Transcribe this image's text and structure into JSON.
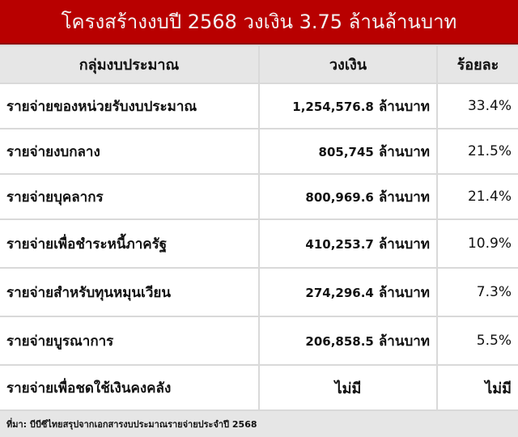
{
  "title": "โครงสร้างงบปี 2568 วงเงิน 3.75 ล้านล้านบาท",
  "colors": {
    "title_bg": "#b80000",
    "header_bg": "#e6e6e6"
  },
  "headers": [
    "กลุ่มงบประมาณ",
    "วงเงิน",
    "ร้อยละ"
  ],
  "unit": "ล้านบาท",
  "rows": [
    {
      "group": "รายจ่ายของหน่วยรับงบประมาณ",
      "amount": "1,254,576.8",
      "percent": "33.4%"
    },
    {
      "group": "รายจ่ายงบกลาง",
      "amount": "805,745",
      "percent": "21.5%"
    },
    {
      "group": "รายจ่ายบุคลากร",
      "amount": "800,969.6",
      "percent": "21.4%"
    },
    {
      "group": "รายจ่ายเพื่อชำระหนี้ภาครัฐ",
      "amount": "410,253.7",
      "percent": "10.9%"
    },
    {
      "group": "รายจ่ายสำหรับทุนหมุนเวียน",
      "amount": "274,296.4",
      "percent": "7.3%"
    },
    {
      "group": "รายจ่ายบูรณาการ",
      "amount": "206,858.5",
      "percent": "5.5%"
    }
  ],
  "last_row": {
    "group": "รายจ่ายเพื่อชดใช้เงินคงคลัง",
    "amount": "ไม่มี",
    "percent": "ไม่มี"
  },
  "source": "ที่มา: บีบีซีไทยสรุปจากเอกสารงบประมาณรายจ่ายประจำปี 2568"
}
